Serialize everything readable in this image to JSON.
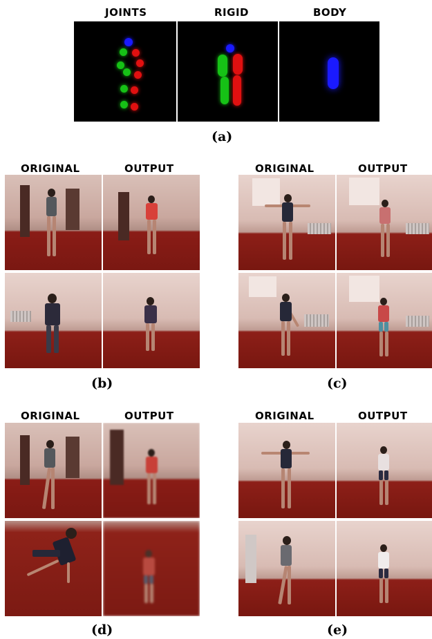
{
  "panel_a": {
    "labels": [
      "JOINTS",
      "RIGID",
      "BODY"
    ],
    "caption": "(a)"
  },
  "panel_b": {
    "original": "ORIGINAL",
    "output": "OUTPUT",
    "caption": "(b)"
  },
  "panel_c": {
    "original": "ORIGINAL",
    "output": "OUTPUT",
    "caption": "(c)"
  },
  "panel_d": {
    "original": "ORIGINAL",
    "output": "OUTPUT",
    "caption": "(d)"
  },
  "panel_e": {
    "original": "ORIGINAL",
    "output": "OUTPUT",
    "caption": "(e)"
  },
  "colors": {
    "joints_left": "#16c116",
    "joints_right": "#e01010",
    "joints_head": "#1a1aff",
    "floor": "#7a1812",
    "wall": "#d8bbb3"
  }
}
